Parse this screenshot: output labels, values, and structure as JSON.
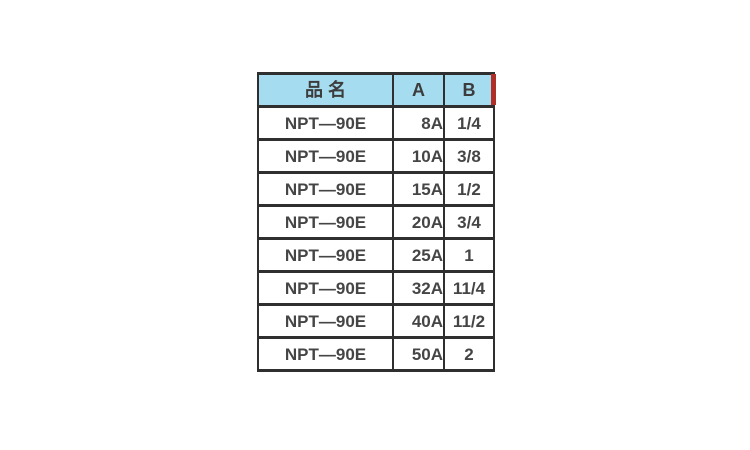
{
  "page": {
    "background_color": "#ffffff",
    "description": "Product specification table for NPT-90E pipe fittings"
  },
  "table": {
    "columns": [
      {
        "key": "name",
        "label": "品 名"
      },
      {
        "key": "a",
        "label": "A"
      },
      {
        "key": "b",
        "label": "B"
      }
    ],
    "rows": [
      {
        "name": "NPT—90E",
        "a": "8A",
        "b": "1/4"
      },
      {
        "name": "NPT—90E",
        "a": "10A",
        "b": "3/8"
      },
      {
        "name": "NPT—90E",
        "a": "15A",
        "b": "1/2"
      },
      {
        "name": "NPT—90E",
        "a": "20A",
        "b": "3/4"
      },
      {
        "name": "NPT—90E",
        "a": "25A",
        "b": "1"
      },
      {
        "name": "NPT—90E",
        "a": "32A",
        "b": "11/4"
      },
      {
        "name": "NPT—90E",
        "a": "40A",
        "b": "11/2"
      },
      {
        "name": "NPT—90E",
        "a": "50A",
        "b": "2"
      }
    ],
    "colors": {
      "header_background": "#a6dcef",
      "grid_border": "#2f2f2f",
      "text": "#454545",
      "header_right_edge_accent": "#b03028"
    }
  }
}
